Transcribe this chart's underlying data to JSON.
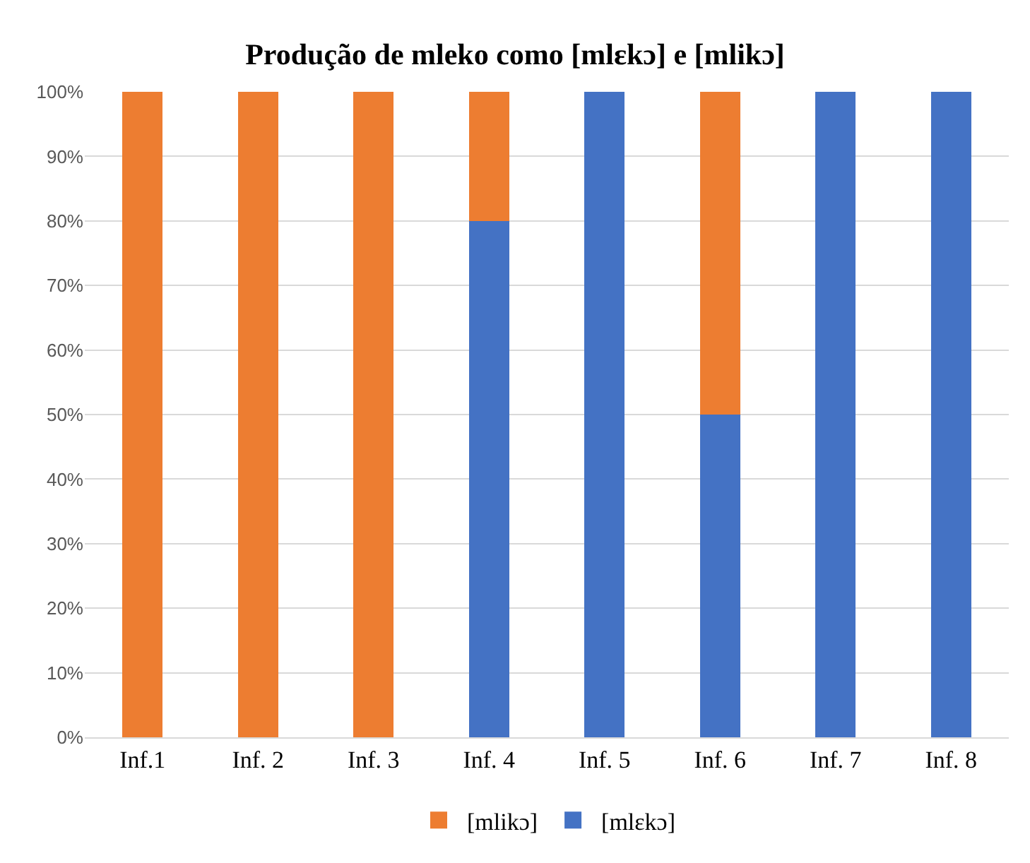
{
  "chart_data": {
    "type": "bar",
    "title": "Produção de mleko como [mlɛkɔ] e [mlikɔ]",
    "categories": [
      "Inf.1",
      "Inf. 2",
      "Inf. 3",
      "Inf. 4",
      "Inf. 5",
      "Inf. 6",
      "Inf. 7",
      "Inf. 8"
    ],
    "series": [
      {
        "name": "[mlɛkɔ]",
        "color": "#4472c4",
        "values": [
          0,
          0,
          0,
          80,
          100,
          50,
          100,
          100
        ]
      },
      {
        "name": "[mlikɔ]",
        "color": "#ed7d31",
        "values": [
          100,
          100,
          100,
          20,
          0,
          50,
          0,
          0
        ]
      }
    ],
    "stacked": true,
    "ylim": [
      0,
      100
    ],
    "yticks": [
      {
        "value": 0,
        "label": "0%"
      },
      {
        "value": 10,
        "label": "10%"
      },
      {
        "value": 20,
        "label": "20%"
      },
      {
        "value": 30,
        "label": "30%"
      },
      {
        "value": 40,
        "label": "40%"
      },
      {
        "value": 50,
        "label": "50%"
      },
      {
        "value": 60,
        "label": "60%"
      },
      {
        "value": 70,
        "label": "70%"
      },
      {
        "value": 80,
        "label": "80%"
      },
      {
        "value": 90,
        "label": "90%"
      },
      {
        "value": 100,
        "label": "100%"
      }
    ],
    "grid": "y",
    "legend": "bottom"
  }
}
